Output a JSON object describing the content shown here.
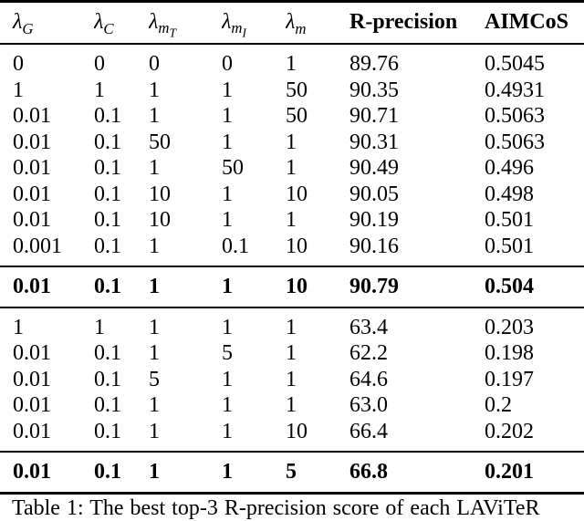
{
  "page": {
    "background": "#ffffff",
    "text_color": "#000000",
    "rule_color": "#000000"
  },
  "table": {
    "columns": [
      {
        "base": "λ",
        "sub": "G",
        "subsub": ""
      },
      {
        "base": "λ",
        "sub": "C",
        "subsub": ""
      },
      {
        "base": "λ",
        "sub": "m",
        "subsub": "T"
      },
      {
        "base": "λ",
        "sub": "m",
        "subsub": "I"
      },
      {
        "base": "λ",
        "sub": "m",
        "subsub": ""
      },
      {
        "label": "R-precision"
      },
      {
        "label": "AIMCoS"
      }
    ],
    "section1_rows": [
      [
        "0",
        "0",
        "0",
        "0",
        "1",
        "89.76",
        "0.5045"
      ],
      [
        "1",
        "1",
        "1",
        "1",
        "50",
        "90.35",
        "0.4931"
      ],
      [
        "0.01",
        "0.1",
        "1",
        "1",
        "50",
        "90.71",
        "0.5063"
      ],
      [
        "0.01",
        "0.1",
        "50",
        "1",
        "1",
        "90.31",
        "0.5063"
      ],
      [
        "0.01",
        "0.1",
        "1",
        "50",
        "1",
        "90.49",
        "0.496"
      ],
      [
        "0.01",
        "0.1",
        "10",
        "1",
        "10",
        "90.05",
        "0.498"
      ],
      [
        "0.01",
        "0.1",
        "10",
        "1",
        "1",
        "90.19",
        "0.501"
      ],
      [
        "0.001",
        "0.1",
        "1",
        "0.1",
        "10",
        "90.16",
        "0.501"
      ]
    ],
    "section1_best": [
      [
        "0.01",
        "0.1",
        "1",
        "1",
        "10",
        "90.79",
        "0.504"
      ]
    ],
    "section2_rows": [
      [
        "1",
        "1",
        "1",
        "1",
        "1",
        "63.4",
        "0.203"
      ],
      [
        "0.01",
        "0.1",
        "1",
        "5",
        "1",
        "62.2",
        "0.198"
      ],
      [
        "0.01",
        "0.1",
        "5",
        "1",
        "1",
        "64.6",
        "0.197"
      ],
      [
        "0.01",
        "0.1",
        "1",
        "1",
        "1",
        "63.0",
        "0.2"
      ],
      [
        "0.01",
        "0.1",
        "1",
        "1",
        "10",
        "66.4",
        "0.202"
      ]
    ],
    "section2_best": [
      [
        "0.01",
        "0.1",
        "1",
        "1",
        "5",
        "66.8",
        "0.201"
      ]
    ]
  },
  "caption": "Table 1: The best top-3 R-precision score of each LAViTeR"
}
